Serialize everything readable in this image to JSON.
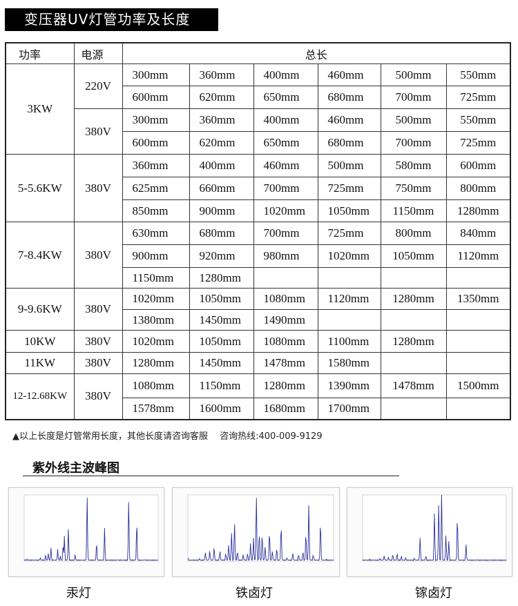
{
  "title": "变压器UV灯管功率及长度",
  "table": {
    "headers": {
      "power": "功率",
      "supply": "电源",
      "length": "总长"
    },
    "groups": [
      {
        "power": "3KW",
        "supplies": [
          {
            "voltage": "220V",
            "rows": [
              [
                "300mm",
                "360mm",
                "400mm",
                "460mm",
                "500mm",
                "550mm"
              ],
              [
                "600mm",
                "620mm",
                "650mm",
                "680mm",
                "700mm",
                "725mm"
              ]
            ]
          },
          {
            "voltage": "380V",
            "rows": [
              [
                "300mm",
                "360mm",
                "400mm",
                "460mm",
                "500mm",
                "550mm"
              ],
              [
                "600mm",
                "620mm",
                "650mm",
                "680mm",
                "700mm",
                "725mm"
              ]
            ]
          }
        ]
      },
      {
        "power": "5-5.6KW",
        "supplies": [
          {
            "voltage": "380V",
            "rows": [
              [
                "360mm",
                "400mm",
                "460mm",
                "500mm",
                "580mm",
                "600mm"
              ],
              [
                "625mm",
                "660mm",
                "700mm",
                "725mm",
                "750mm",
                "800mm"
              ],
              [
                "850mm",
                "900mm",
                "1020mm",
                "1050mm",
                "1150mm",
                "1280mm"
              ]
            ]
          }
        ]
      },
      {
        "power": "7-8.4KW",
        "supplies": [
          {
            "voltage": "380V",
            "rows": [
              [
                "630mm",
                "680mm",
                "700mm",
                "725mm",
                "800mm",
                "840mm"
              ],
              [
                "900mm",
                "920mm",
                "980mm",
                "1020mm",
                "1050mm",
                "1120mm"
              ],
              [
                "1150mm",
                "1280mm",
                "",
                "",
                "",
                ""
              ]
            ]
          }
        ]
      },
      {
        "power": "9-9.6KW",
        "supplies": [
          {
            "voltage": "380V",
            "rows": [
              [
                "1020mm",
                "1050mm",
                "1080mm",
                "1120mm",
                "1280mm",
                "1350mm"
              ],
              [
                "1380mm",
                "1450mm",
                "1490mm",
                "",
                "",
                ""
              ]
            ]
          }
        ]
      },
      {
        "power": "10KW",
        "supplies": [
          {
            "voltage": "380V",
            "rows": [
              [
                "1020mm",
                "1050mm",
                "1080mm",
                "1100mm",
                "1280mm",
                ""
              ]
            ]
          }
        ]
      },
      {
        "power": "11KW",
        "supplies": [
          {
            "voltage": "380V",
            "rows": [
              [
                "1280mm",
                "1450mm",
                "1478mm",
                "1580mm",
                "",
                ""
              ]
            ]
          }
        ]
      },
      {
        "power": "12-12.68KW",
        "supplies": [
          {
            "voltage": "380V",
            "rows": [
              [
                "1080mm",
                "1150mm",
                "1280mm",
                "1390mm",
                "1478mm",
                "1500mm"
              ],
              [
                "1578mm",
                "1600mm",
                "1680mm",
                "1700mm",
                "",
                ""
              ]
            ]
          }
        ]
      }
    ]
  },
  "note": "▲以上长度是灯管常用长度，其他长度请咨询客服　 咨询热线:400-009-9129",
  "spectrum_section": {
    "title": "紫外线主波峰图",
    "figures": [
      {
        "caption": "汞灯"
      },
      {
        "caption": "铁卤灯"
      },
      {
        "caption": "镓卤灯"
      }
    ],
    "line_color": "#2b2f9a"
  }
}
